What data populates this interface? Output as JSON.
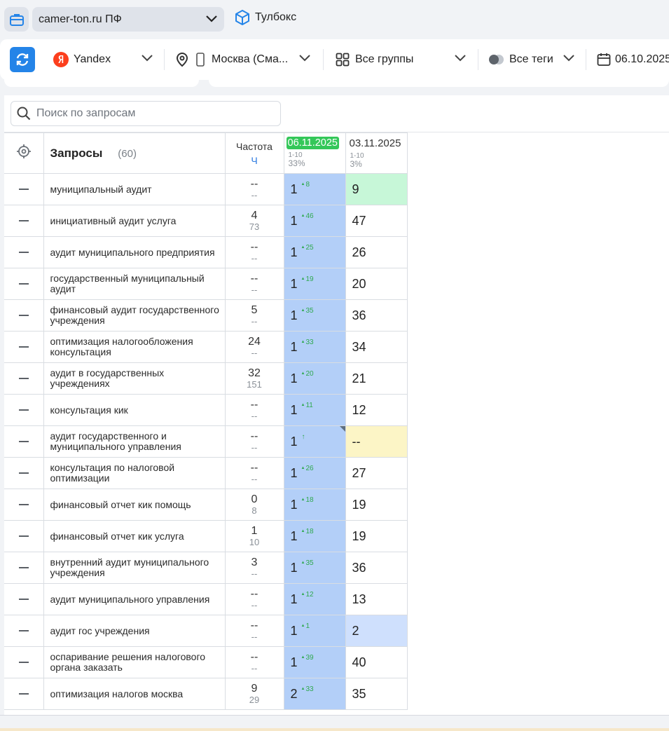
{
  "topbar": {
    "project": "camer-ton.ru ПФ",
    "toolbox": "Тулбокс"
  },
  "filters": {
    "engine": "Yandex",
    "region": "Москва (Сма...",
    "groups": "Все группы",
    "tags": "Все теги",
    "date": "06.10.2025"
  },
  "search": {
    "placeholder": "Поиск по запросам"
  },
  "table": {
    "title": "Запросы",
    "count": "(60)",
    "freq_label": "Частота",
    "freq_unit": "Ч",
    "dates": [
      {
        "date": "06.11.2025",
        "range": "1-10",
        "pct": "33%"
      },
      {
        "date": "03.11.2025",
        "range": "1-10",
        "pct": "3%"
      }
    ],
    "rows": [
      {
        "query": "муниципальный аудит",
        "freq": "--",
        "freq2": "--",
        "p1": "1",
        "delta": "8",
        "p2": "9",
        "hl": "green"
      },
      {
        "query": "инициативный аудит услуга",
        "freq": "4",
        "freq2": "73",
        "p1": "1",
        "delta": "46",
        "p2": "47",
        "hl": ""
      },
      {
        "query": "аудит муниципального предприятия",
        "freq": "--",
        "freq2": "--",
        "p1": "1",
        "delta": "25",
        "p2": "26",
        "hl": ""
      },
      {
        "query": "государственный муниципальный аудит",
        "freq": "--",
        "freq2": "--",
        "p1": "1",
        "delta": "19",
        "p2": "20",
        "hl": ""
      },
      {
        "query": "финансовый аудит государственного учреждения",
        "freq": "5",
        "freq2": "--",
        "p1": "1",
        "delta": "35",
        "p2": "36",
        "hl": ""
      },
      {
        "query": "оптимизация налогообложения консультация",
        "freq": "24",
        "freq2": "--",
        "p1": "1",
        "delta": "33",
        "p2": "34",
        "hl": ""
      },
      {
        "query": "аудит в государственных учреждениях",
        "freq": "32",
        "freq2": "151",
        "p1": "1",
        "delta": "20",
        "p2": "21",
        "hl": ""
      },
      {
        "query": "консультация кик",
        "freq": "--",
        "freq2": "--",
        "p1": "1",
        "delta": "11",
        "p2": "12",
        "hl": ""
      },
      {
        "query": "аудит государственного и муниципального управления",
        "freq": "--",
        "freq2": "--",
        "p1": "1",
        "delta": "↑",
        "p2": "--",
        "hl": "yellow",
        "corner": true
      },
      {
        "query": "консультация по налоговой оптимизации",
        "freq": "--",
        "freq2": "--",
        "p1": "1",
        "delta": "26",
        "p2": "27",
        "hl": ""
      },
      {
        "query": "финансовый отчет кик помощь",
        "freq": "0",
        "freq2": "8",
        "p1": "1",
        "delta": "18",
        "p2": "19",
        "hl": ""
      },
      {
        "query": "финансовый отчет кик услуга",
        "freq": "1",
        "freq2": "10",
        "p1": "1",
        "delta": "18",
        "p2": "19",
        "hl": ""
      },
      {
        "query": "внутренний аудит муниципального учреждения",
        "freq": "3",
        "freq2": "--",
        "p1": "1",
        "delta": "35",
        "p2": "36",
        "hl": ""
      },
      {
        "query": "аудит муниципального управления",
        "freq": "--",
        "freq2": "--",
        "p1": "1",
        "delta": "12",
        "p2": "13",
        "hl": ""
      },
      {
        "query": "аудит гос учреждения",
        "freq": "--",
        "freq2": "--",
        "p1": "1",
        "delta": "1",
        "p2": "2",
        "hl": "blue"
      },
      {
        "query": "оспаривание решения налогового органа заказать",
        "freq": "--",
        "freq2": "--",
        "p1": "1",
        "delta": "39",
        "p2": "40",
        "hl": ""
      },
      {
        "query": "оптимизация налогов москва",
        "freq": "9",
        "freq2": "29",
        "p1": "2",
        "delta": "33",
        "p2": "35",
        "hl": ""
      }
    ]
  },
  "colors": {
    "accent": "#2484e8",
    "active_date": "#34c759",
    "current_col": "#b3cff8",
    "delta_up": "#2fa84f"
  }
}
